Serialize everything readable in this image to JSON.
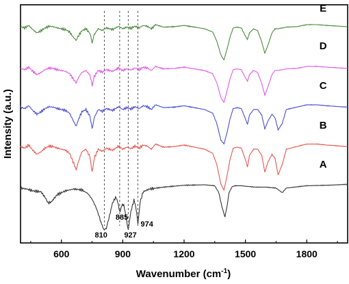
{
  "chart_data": {
    "type": "line",
    "xlabel_main": "Wavenumber (cm",
    "xlabel_sup": "-1",
    "xlabel_close": ")",
    "ylabel": "Intensity (a.u.)",
    "xlim": [
      400,
      2000
    ],
    "xticks": [
      600,
      900,
      1200,
      1500,
      1800
    ],
    "yticks": "none",
    "grid": false,
    "legend": "none",
    "series": [
      {
        "name": "A",
        "color": "#333333",
        "label_x": 1880,
        "x": [
          400,
          430,
          460,
          500,
          520,
          535,
          550,
          580,
          620,
          660,
          700,
          730,
          750,
          770,
          790,
          800,
          810,
          820,
          835,
          850,
          865,
          875,
          885,
          895,
          905,
          915,
          927,
          940,
          955,
          965,
          974,
          985,
          1000,
          1030,
          1100,
          1200,
          1300,
          1350,
          1370,
          1385,
          1400,
          1410,
          1420,
          1435,
          1450,
          1480,
          1500,
          1550,
          1600,
          1650,
          1680,
          1700,
          1800,
          1900,
          2000
        ],
        "y": [
          -0.1,
          -0.12,
          -0.16,
          -0.18,
          -0.3,
          -0.42,
          -0.4,
          -0.24,
          -0.16,
          -0.12,
          -0.14,
          -0.22,
          -0.34,
          -0.52,
          -0.78,
          -0.92,
          -1.0,
          -0.96,
          -0.7,
          -0.42,
          -0.3,
          -0.38,
          -0.62,
          -0.48,
          -0.45,
          -0.72,
          -1.0,
          -0.6,
          -0.36,
          -0.52,
          -0.88,
          -0.4,
          -0.18,
          -0.12,
          -0.08,
          -0.04,
          -0.03,
          -0.05,
          -0.2,
          -0.5,
          -0.72,
          -0.5,
          -0.2,
          -0.07,
          -0.05,
          -0.05,
          -0.06,
          -0.08,
          -0.08,
          -0.1,
          -0.2,
          -0.1,
          -0.05,
          -0.04,
          -0.02
        ]
      },
      {
        "name": "B",
        "color": "#e8554e",
        "label_x": 1880,
        "x": [
          400,
          420,
          440,
          460,
          480,
          500,
          520,
          540,
          560,
          580,
          600,
          620,
          640,
          660,
          672,
          685,
          700,
          720,
          740,
          750,
          760,
          780,
          800,
          820,
          850,
          880,
          900,
          920,
          940,
          960,
          980,
          1000,
          1020,
          1040,
          1060,
          1100,
          1150,
          1200,
          1250,
          1300,
          1340,
          1360,
          1380,
          1395,
          1410,
          1425,
          1440,
          1460,
          1480,
          1500,
          1510,
          1520,
          1540,
          1560,
          1580,
          1595,
          1610,
          1630,
          1645,
          1660,
          1680,
          1700,
          1750,
          1800,
          1850,
          1900,
          2000
        ],
        "y": [
          0.05,
          0.02,
          0.08,
          -0.02,
          -0.1,
          -0.05,
          0.02,
          0.06,
          0.05,
          0.02,
          0.0,
          -0.02,
          -0.08,
          -0.28,
          -0.4,
          -0.22,
          -0.05,
          0.0,
          -0.15,
          -0.46,
          -0.18,
          0.0,
          -0.04,
          0.02,
          -0.02,
          0.06,
          0.0,
          0.04,
          0.01,
          0.06,
          0.02,
          0.08,
          0.06,
          0.0,
          0.1,
          0.04,
          0.05,
          0.08,
          0.04,
          0.0,
          -0.08,
          -0.3,
          -0.68,
          -0.8,
          -0.52,
          -0.2,
          0.02,
          0.04,
          0.02,
          -0.2,
          -0.35,
          -0.12,
          0.0,
          0.0,
          -0.12,
          -0.45,
          -0.25,
          -0.1,
          -0.18,
          -0.5,
          -0.3,
          0.0,
          0.05,
          0.1,
          0.1,
          0.08,
          0.05
        ]
      },
      {
        "name": "C",
        "color": "#4a4ed4",
        "label_x": 1880,
        "x": [
          400,
          420,
          440,
          460,
          480,
          500,
          520,
          540,
          560,
          580,
          600,
          620,
          640,
          660,
          672,
          685,
          700,
          720,
          740,
          750,
          760,
          780,
          800,
          820,
          850,
          880,
          900,
          920,
          940,
          960,
          980,
          1000,
          1020,
          1040,
          1060,
          1100,
          1150,
          1200,
          1250,
          1300,
          1340,
          1360,
          1380,
          1395,
          1410,
          1425,
          1440,
          1460,
          1480,
          1500,
          1510,
          1520,
          1540,
          1560,
          1580,
          1595,
          1610,
          1630,
          1645,
          1660,
          1680,
          1700,
          1750,
          1800,
          1850,
          1900,
          2000
        ],
        "y": [
          0.05,
          0.02,
          0.08,
          -0.02,
          -0.1,
          -0.05,
          0.02,
          0.06,
          0.05,
          0.02,
          0.0,
          -0.02,
          -0.08,
          -0.26,
          -0.36,
          -0.2,
          -0.05,
          0.0,
          -0.15,
          -0.42,
          -0.18,
          0.0,
          -0.04,
          0.02,
          -0.02,
          0.06,
          0.0,
          0.04,
          0.01,
          0.06,
          0.02,
          0.08,
          0.06,
          0.0,
          0.1,
          0.04,
          0.05,
          0.08,
          0.04,
          0.0,
          -0.08,
          -0.3,
          -0.66,
          -0.74,
          -0.5,
          -0.2,
          0.02,
          0.04,
          0.02,
          -0.2,
          -0.32,
          -0.12,
          0.0,
          0.0,
          -0.12,
          -0.42,
          -0.25,
          -0.1,
          -0.18,
          -0.44,
          -0.3,
          0.0,
          0.05,
          0.1,
          0.1,
          0.08,
          0.05
        ]
      },
      {
        "name": "D",
        "color": "#e05ae6",
        "label_x": 1880,
        "x": [
          400,
          420,
          440,
          460,
          480,
          500,
          520,
          540,
          560,
          580,
          600,
          620,
          640,
          660,
          672,
          685,
          700,
          720,
          740,
          750,
          760,
          780,
          800,
          820,
          850,
          880,
          900,
          920,
          940,
          960,
          980,
          1000,
          1020,
          1040,
          1060,
          1100,
          1150,
          1200,
          1250,
          1300,
          1340,
          1360,
          1380,
          1395,
          1410,
          1425,
          1440,
          1460,
          1480,
          1500,
          1510,
          1520,
          1540,
          1560,
          1580,
          1595,
          1610,
          1630,
          1645,
          1660,
          1680,
          1700,
          1750,
          1800,
          1850,
          1900,
          2000
        ],
        "y": [
          0.05,
          0.02,
          0.08,
          -0.02,
          -0.1,
          -0.05,
          0.02,
          0.06,
          0.05,
          0.02,
          0.0,
          -0.02,
          -0.08,
          -0.22,
          -0.3,
          -0.16,
          -0.05,
          0.0,
          -0.12,
          -0.36,
          -0.15,
          0.0,
          -0.04,
          0.02,
          -0.02,
          0.06,
          0.0,
          0.04,
          0.01,
          0.06,
          0.02,
          0.08,
          0.06,
          0.0,
          0.1,
          0.04,
          0.05,
          0.08,
          0.04,
          0.0,
          -0.08,
          -0.3,
          -0.66,
          -0.78,
          -0.5,
          -0.2,
          0.02,
          0.04,
          0.02,
          -0.18,
          -0.26,
          -0.1,
          0.0,
          -0.05,
          -0.32,
          -0.6,
          -0.4,
          -0.1,
          0.0,
          0.0,
          0.02,
          0.04,
          0.05,
          0.1,
          0.1,
          0.08,
          0.05
        ]
      },
      {
        "name": "E",
        "color": "#4a8a3c",
        "label_x": 1880,
        "x": [
          400,
          420,
          440,
          460,
          480,
          500,
          520,
          540,
          560,
          580,
          600,
          620,
          640,
          660,
          672,
          685,
          700,
          720,
          740,
          750,
          760,
          780,
          800,
          820,
          850,
          880,
          900,
          920,
          940,
          960,
          980,
          1000,
          1020,
          1040,
          1060,
          1100,
          1150,
          1200,
          1250,
          1300,
          1340,
          1360,
          1380,
          1395,
          1410,
          1425,
          1440,
          1460,
          1480,
          1500,
          1510,
          1520,
          1540,
          1560,
          1580,
          1595,
          1610,
          1630,
          1645,
          1660,
          1680,
          1700,
          1750,
          1800,
          1850,
          1900,
          2000
        ],
        "y": [
          0.05,
          0.02,
          0.08,
          -0.02,
          -0.1,
          -0.05,
          0.02,
          0.06,
          0.05,
          0.02,
          0.0,
          -0.02,
          -0.08,
          -0.22,
          -0.28,
          -0.16,
          -0.05,
          0.0,
          -0.12,
          -0.34,
          -0.15,
          0.0,
          -0.04,
          0.02,
          -0.02,
          0.06,
          0.0,
          0.04,
          0.01,
          0.06,
          0.02,
          0.08,
          0.06,
          0.0,
          0.1,
          0.04,
          0.05,
          0.08,
          0.04,
          0.0,
          -0.08,
          -0.3,
          -0.64,
          -0.76,
          -0.5,
          -0.2,
          0.02,
          0.04,
          0.02,
          -0.18,
          -0.26,
          -0.1,
          0.0,
          -0.05,
          -0.32,
          -0.6,
          -0.4,
          -0.1,
          0.0,
          0.0,
          0.02,
          0.04,
          0.05,
          0.1,
          0.1,
          0.08,
          0.05
        ]
      }
    ],
    "reference_lines": [
      810,
      885,
      927,
      974
    ],
    "annotations": [
      {
        "text": "810",
        "x": 810
      },
      {
        "text": "885",
        "x": 885
      },
      {
        "text": "927",
        "x": 927
      },
      {
        "text": "974",
        "x": 974
      }
    ]
  }
}
